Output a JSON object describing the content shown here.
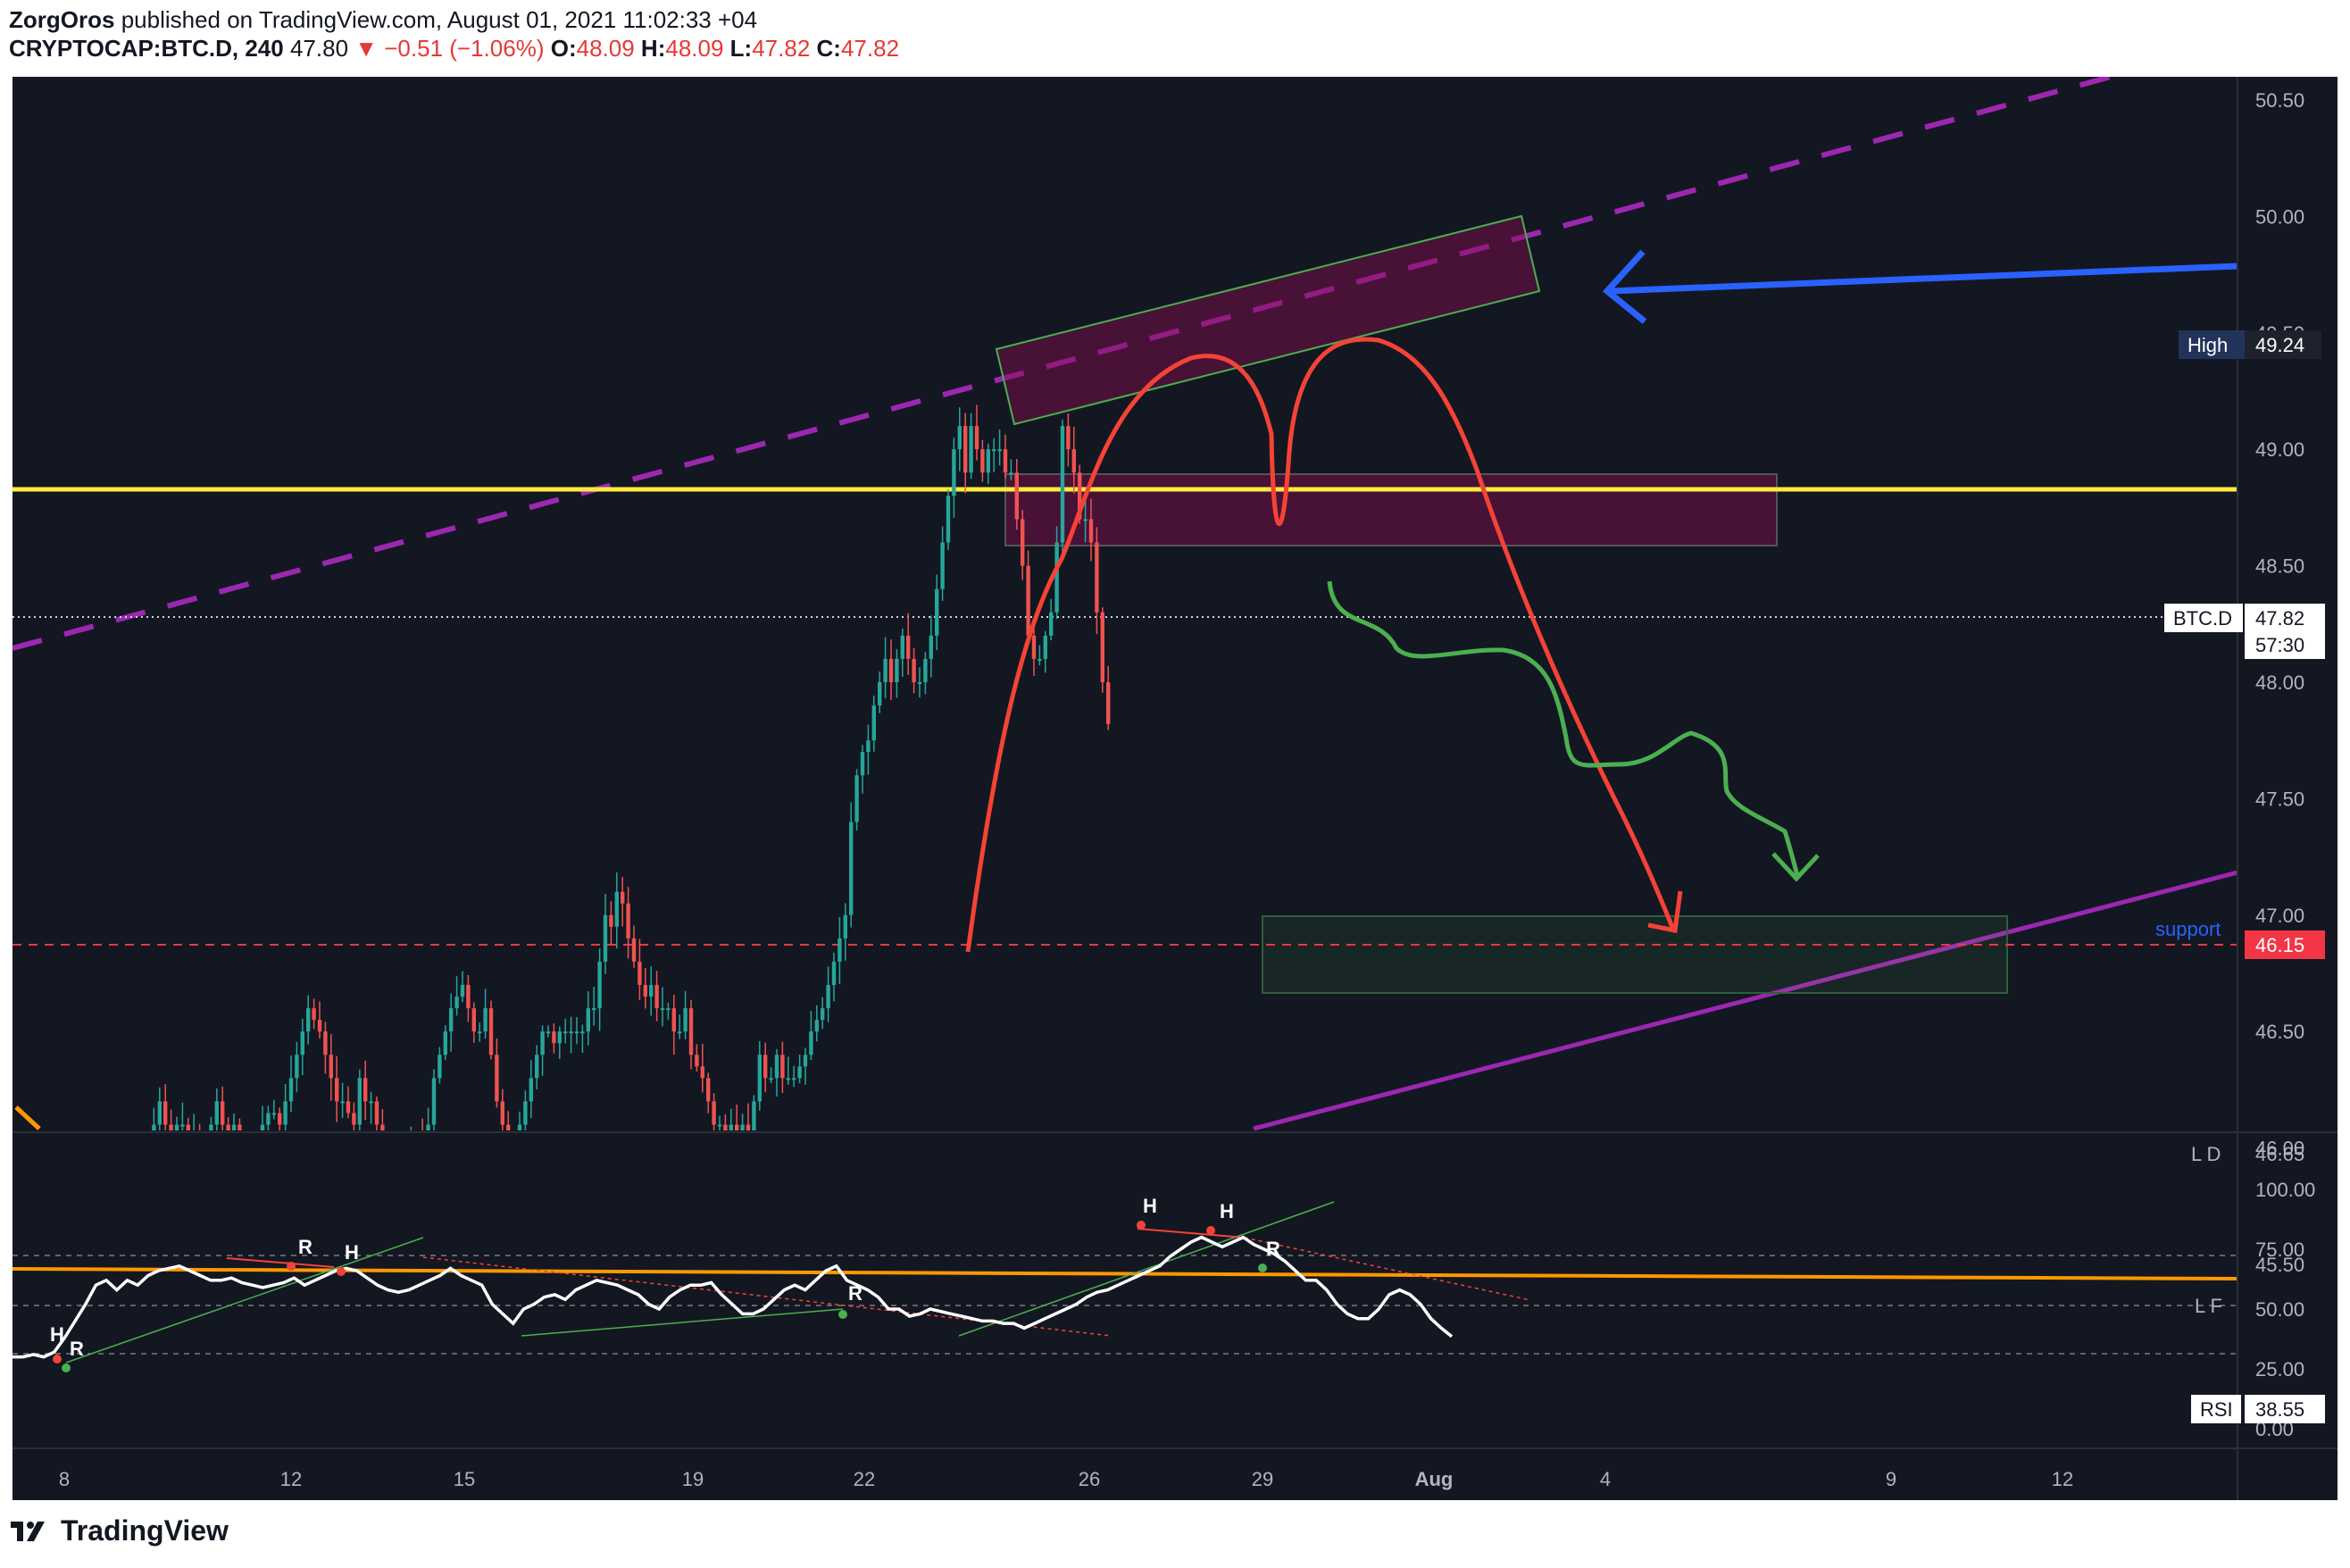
{
  "header": {
    "author": "ZorgOros",
    "published": "published on TradingView.com, August 01, 2021 11:02:33 +04",
    "symbol": "CRYPTOCAP:BTC.D, 240",
    "last": "47.80",
    "change": "▼ −0.51 (−1.06%)",
    "o_label": "O:",
    "o_val": "48.09",
    "h_label": "H:",
    "h_val": "48.09",
    "l_label": "L:",
    "l_val": "47.82",
    "c_label": "C:",
    "c_val": "47.82"
  },
  "footer": {
    "brand": "TradingView"
  },
  "colors": {
    "background": "#131722",
    "up": "#26a69a",
    "down": "#ef5350",
    "yellow_line": "#ffeb3b",
    "purple": "#9c27b0",
    "blue_arrow": "#2962ff",
    "red_drawing": "#f44336",
    "green_drawing": "#4caf50",
    "orange_line": "#ff9800",
    "rsi": "#ffffff"
  },
  "chart_data": [
    {
      "type": "candlestick",
      "title": "CRYPTOCAP:BTC.D, 240",
      "x_tick_labels": [
        "8",
        "12",
        "15",
        "19",
        "22",
        "26",
        "29",
        "Aug",
        "4",
        "9",
        "12"
      ],
      "y_tick_labels": [
        "50.50",
        "50.00",
        "49.50",
        "49.00",
        "48.50",
        "48.00",
        "47.50",
        "47.00",
        "46.50",
        "46.00",
        "45.50"
      ],
      "ylim": [
        45.2,
        50.6
      ],
      "price_scale_labels": [
        {
          "name": "High",
          "value": "49.24"
        },
        {
          "name": "BTC.D",
          "value": "47.82",
          "extra": "57:30"
        },
        {
          "name": "support",
          "value": "46.15"
        },
        {
          "name": "L D",
          "value": "46.65"
        }
      ],
      "horizontal_levels": {
        "resistance": 48.5,
        "support": 46.15,
        "current": 47.82
      },
      "closes": [
        45.3,
        45.6,
        45.7,
        45.5,
        45.7,
        45.9,
        46.1,
        46.2,
        46.1,
        46.0,
        46.1,
        46.1,
        46.0,
        46.05,
        45.95,
        46.0,
        46.1,
        46.2,
        46.1,
        46.05,
        46.1,
        46.0,
        46.0,
        45.95,
        46.0,
        46.1,
        46.15,
        46.15,
        46.1,
        46.2,
        46.3,
        46.4,
        46.5,
        46.6,
        46.55,
        46.5,
        46.4,
        46.3,
        46.2,
        46.2,
        46.15,
        46.1,
        46.3,
        46.2,
        46.2,
        46.1,
        46.0,
        46.0,
        45.85,
        45.8,
        45.9,
        46.0,
        46.05,
        46.0,
        46.1,
        46.3,
        46.4,
        46.5,
        46.6,
        46.65,
        46.7,
        46.6,
        46.5,
        46.5,
        46.6,
        46.4,
        46.2,
        46.1,
        46.0,
        46.0,
        46.1,
        46.2,
        46.3,
        46.4,
        46.5,
        46.5,
        46.45,
        46.5,
        46.5,
        46.5,
        46.5,
        46.5,
        46.6,
        46.6,
        46.8,
        47.0,
        46.95,
        47.1,
        47.05,
        46.9,
        46.8,
        46.7,
        46.65,
        46.7,
        46.6,
        46.6,
        46.6,
        46.5,
        46.5,
        46.6,
        46.4,
        46.35,
        46.3,
        46.2,
        46.1,
        46.1,
        46.05,
        46.1,
        46.0,
        46.1,
        46.0,
        46.2,
        46.4,
        46.3,
        46.3,
        46.4,
        46.3,
        46.3,
        46.3,
        46.35,
        46.4,
        46.5,
        46.55,
        46.6,
        46.7,
        46.8,
        46.9,
        47.0,
        47.4,
        47.6,
        47.7,
        47.75,
        47.9,
        48.0,
        48.1,
        48.0,
        48.1,
        48.2,
        48.1,
        48.0,
        48.0,
        48.1,
        48.2,
        48.4,
        48.6,
        48.8,
        49.0,
        49.1,
        48.9,
        49.1,
        49.0,
        48.9,
        49.0,
        49.0,
        49.0,
        48.9,
        48.9,
        48.7,
        48.5,
        48.2,
        48.1,
        48.1,
        48.2,
        48.3,
        48.6,
        49.1,
        49.0,
        48.9,
        48.7,
        48.7,
        48.6,
        48.3,
        48.0,
        47.82
      ],
      "rsi": {
        "name": "RSI",
        "value": "38.55",
        "y_tick_labels": [
          "100.00",
          "75.00",
          "50.00",
          "25.00",
          "0.00"
        ],
        "overlay_labels": [
          "L F"
        ],
        "ylim": [
          0,
          100
        ],
        "levels": [
          70,
          50,
          30
        ],
        "values": [
          30,
          30,
          31,
          30,
          32,
          38,
          45,
          52,
          60,
          62,
          58,
          62,
          60,
          64,
          66,
          67,
          68,
          66,
          64,
          62,
          62,
          63,
          61,
          60,
          59,
          60,
          61,
          63,
          60,
          62,
          64,
          66,
          67,
          66,
          63,
          60,
          58,
          57,
          58,
          60,
          62,
          64,
          67,
          64,
          62,
          60,
          52,
          48,
          44,
          50,
          52,
          55,
          56,
          54,
          58,
          60,
          62,
          61,
          60,
          58,
          56,
          52,
          50,
          55,
          58,
          60,
          60,
          61,
          56,
          52,
          48,
          48,
          50,
          54,
          58,
          60,
          58,
          62,
          66,
          68,
          62,
          60,
          58,
          55,
          50,
          50,
          47,
          48,
          50,
          49,
          48,
          47,
          46,
          45,
          45,
          44,
          44,
          42,
          44,
          46,
          48,
          50,
          52,
          55,
          57,
          58,
          60,
          62,
          64,
          66,
          68,
          72,
          75,
          78,
          80,
          78,
          76,
          78,
          80,
          77,
          75,
          73,
          70,
          66,
          62,
          62,
          58,
          52,
          48,
          46,
          46,
          50,
          56,
          58,
          56,
          52,
          46,
          42,
          38.55
        ]
      },
      "annotations": [
        "support",
        "H",
        "R",
        "R",
        "H",
        "R",
        "H",
        "H",
        "R",
        "H"
      ]
    }
  ]
}
